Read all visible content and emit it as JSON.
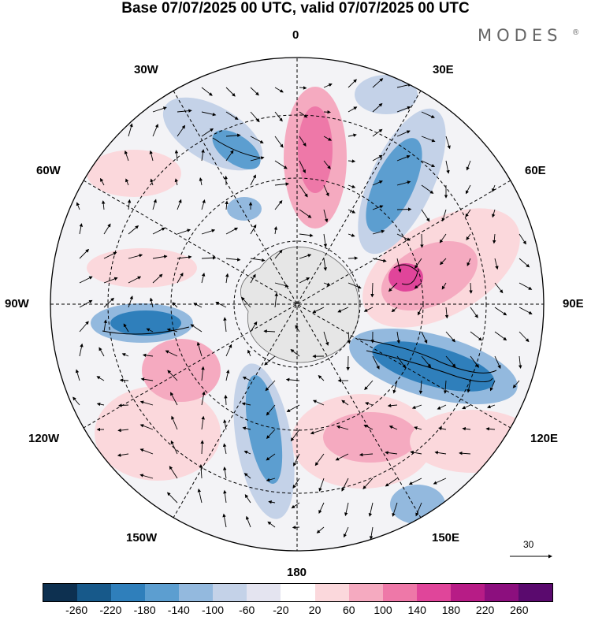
{
  "title": "Base 07/07/2025 00 UTC, valid 07/07/2025 00 UTC",
  "brand": {
    "name": "MODES",
    "mark": "®"
  },
  "longitude_labels": {
    "top": "0",
    "bottom": "180",
    "left": "90W",
    "right": "90E",
    "nw1": "30W",
    "nw2": "60W",
    "ne1": "30E",
    "ne2": "60E",
    "sw1": "120W",
    "sw2": "150W",
    "se1": "120E",
    "se2": "150E"
  },
  "reference_vector": {
    "value": "30"
  },
  "colorbar": {
    "colors": [
      "#0d3050",
      "#17598a",
      "#2f7fbb",
      "#5c9ed0",
      "#93b9de",
      "#c4d2e8",
      "#e4e4f0",
      "#ffffff",
      "#fbd8dc",
      "#f5aac0",
      "#ee78a8",
      "#e0459a",
      "#b71c86",
      "#8c0f7e",
      "#5a0a6e"
    ],
    "ticks": [
      "-260",
      "-220",
      "-180",
      "-140",
      "-100",
      "-60",
      "-20",
      "20",
      "60",
      "100",
      "140",
      "180",
      "220",
      "260"
    ]
  }
}
